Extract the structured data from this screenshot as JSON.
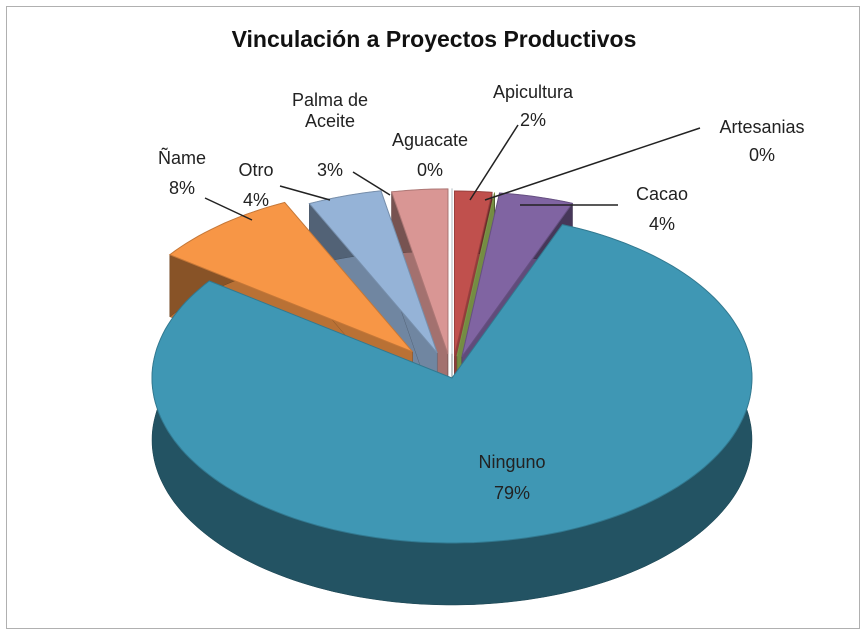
{
  "chart_data": {
    "type": "pie",
    "title": "Vinculación a Proyectos Productivos",
    "categories": [
      "Apicultura",
      "Artesanias",
      "Cacao",
      "Ninguno",
      "Ñame",
      "Otro",
      "Palma de Aceite",
      "Aguacate"
    ],
    "values": [
      2,
      0,
      4,
      79,
      8,
      4,
      3,
      0
    ],
    "value_labels": [
      "2%",
      "0%",
      "4%",
      "79%",
      "8%",
      "4%",
      "3%",
      "0%"
    ],
    "colors": [
      "#c0504d",
      "#9bbb59",
      "#8064a2",
      "#3f97b4",
      "#f79646",
      "#95b3d7",
      "#d99694",
      "#dbeef4"
    ]
  }
}
